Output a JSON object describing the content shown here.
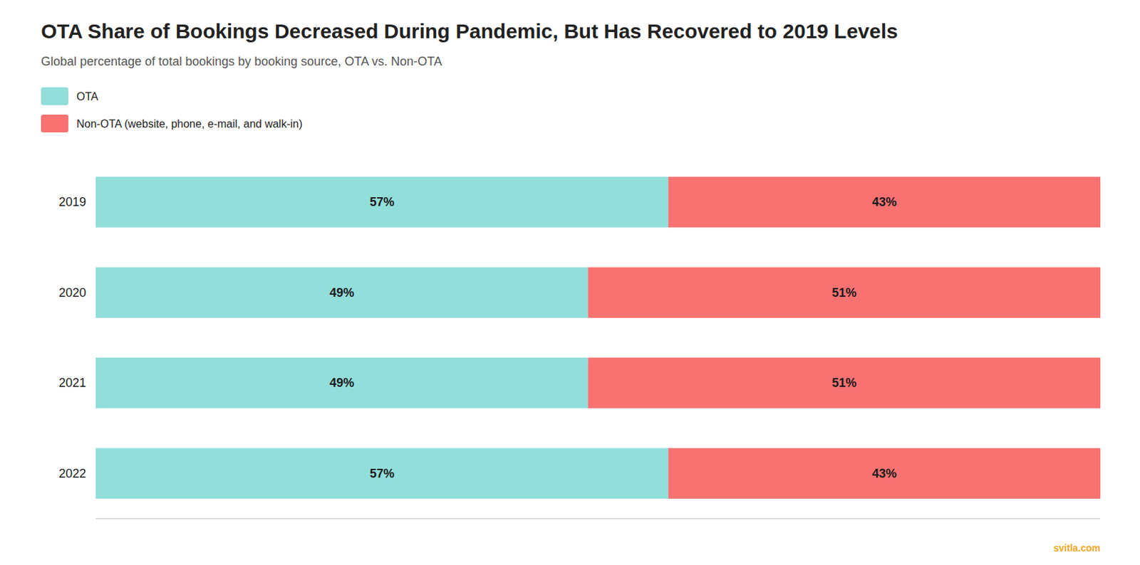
{
  "chart_data": {
    "type": "bar",
    "orientation": "horizontal",
    "stacked": true,
    "title": "OTA Share of Bookings Decreased During Pandemic, But Has Recovered to 2019 Levels",
    "subtitle": "Global percentage of total bookings by booking source, OTA vs. Non-OTA",
    "categories": [
      "2019",
      "2020",
      "2021",
      "2022"
    ],
    "series": [
      {
        "name": "OTA",
        "color": "#92DEDA",
        "values": [
          57,
          49,
          49,
          57
        ],
        "value_labels": [
          "57%",
          "49%",
          "49%",
          "57%"
        ]
      },
      {
        "name": "Non-OTA (website, phone, e-mail, and walk-in)",
        "color": "#F97272",
        "values": [
          43,
          51,
          51,
          43
        ],
        "value_labels": [
          "43%",
          "51%",
          "51%",
          "43%"
        ]
      }
    ],
    "xlim": [
      0,
      100
    ],
    "data_labels": true,
    "tick_labels": "y",
    "grid": false,
    "legend": "top-left",
    "annotations": [
      {
        "text": "svitla.com",
        "color": "#F5A623"
      }
    ]
  }
}
